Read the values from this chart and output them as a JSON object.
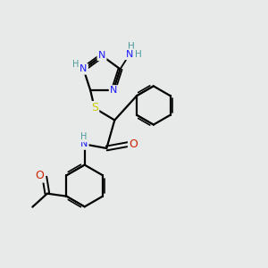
{
  "bg_color": "#e8eaea",
  "atom_colors": {
    "C": "#000000",
    "N": "#1a1aff",
    "N_h": "#4a9a9a",
    "O": "#cc2200",
    "S": "#cccc00",
    "H": "#4a9a9a"
  },
  "bond_color": "#000000",
  "bond_width": 1.6,
  "fig_size": [
    3.0,
    3.0
  ],
  "dpi": 100
}
